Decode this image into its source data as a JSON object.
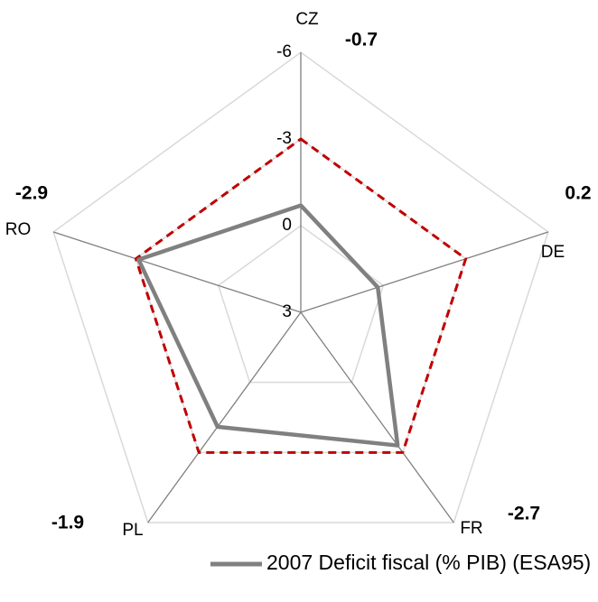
{
  "chart_data": {
    "type": "radar",
    "categories": [
      "CZ",
      "DE",
      "FR",
      "PL",
      "RO"
    ],
    "series": [
      {
        "name": "2007 Deficit fiscal (% PIB) (ESA95)",
        "color": "#808080",
        "values": [
          -0.7,
          0.2,
          -2.7,
          -1.9,
          -2.9
        ]
      },
      {
        "color": "#c00000",
        "values": [
          -3,
          -3,
          -3,
          -3,
          -3
        ]
      }
    ],
    "ylim": [
      3,
      -6
    ],
    "yticks": [
      -6,
      -3,
      0,
      3
    ],
    "grid": true
  }
}
